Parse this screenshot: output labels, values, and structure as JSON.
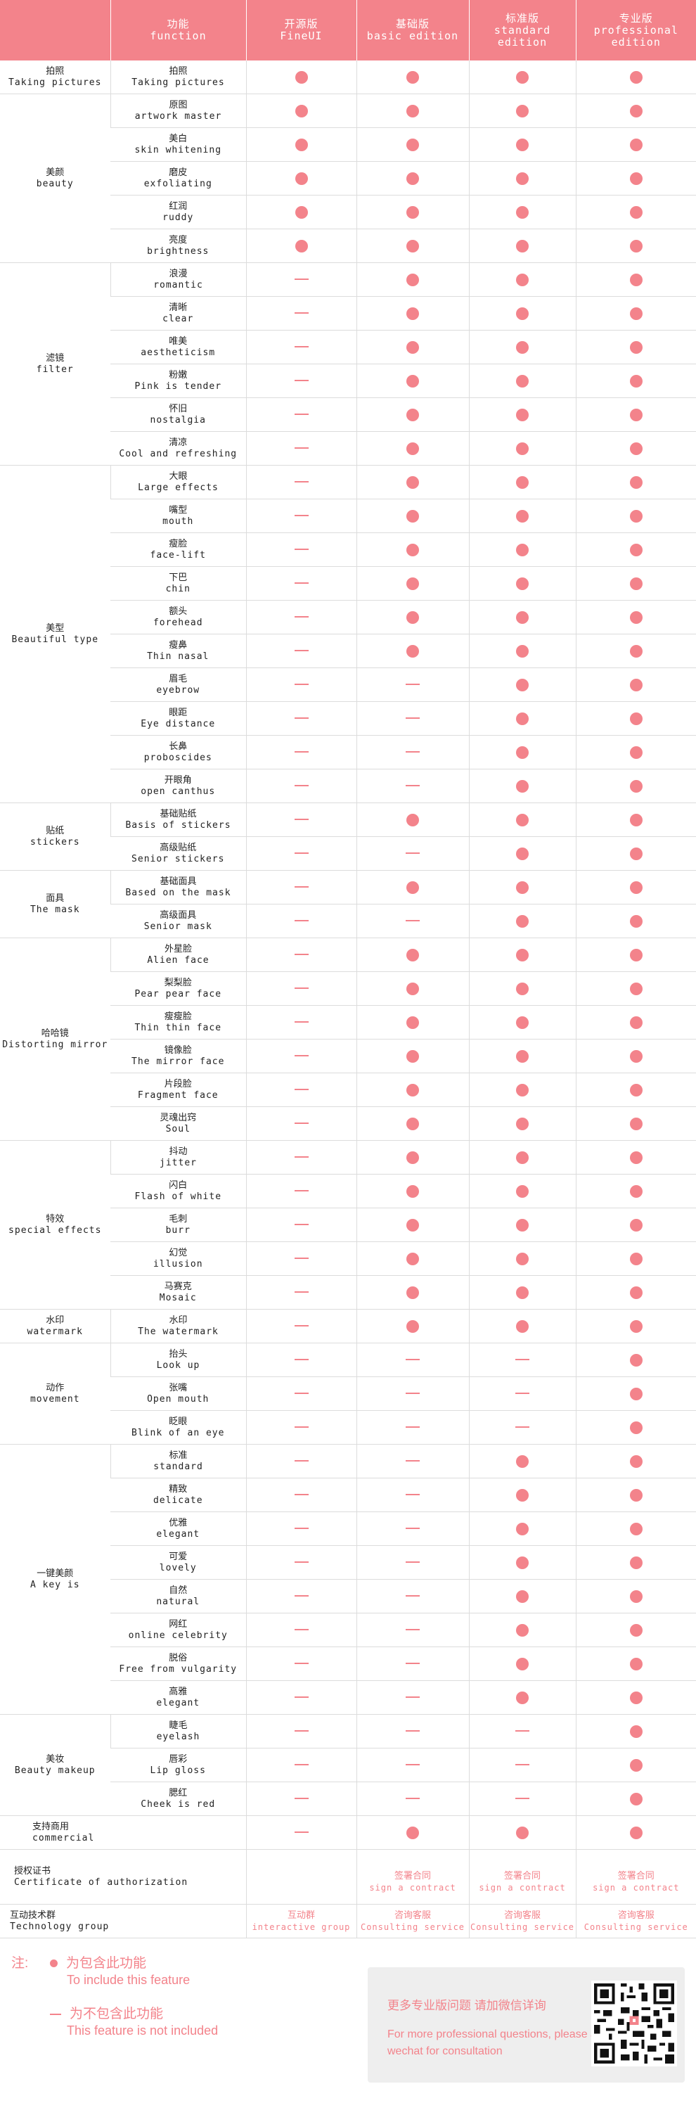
{
  "header": {
    "function": {
      "zh": "功能",
      "en": "function"
    },
    "editions": [
      {
        "zh": "开源版",
        "en": "FineUI"
      },
      {
        "zh": "基础版",
        "en": "basic edition"
      },
      {
        "zh": "标准版",
        "en": "standard edition"
      },
      {
        "zh": "专业版",
        "en": "professional edition"
      }
    ]
  },
  "groups": [
    {
      "zh": "拍照",
      "en": "Taking pictures",
      "rows": [
        {
          "zh": "拍照",
          "en": "Taking pictures",
          "v": [
            1,
            1,
            1,
            1
          ]
        }
      ]
    },
    {
      "zh": "美颜",
      "en": "beauty",
      "rows": [
        {
          "zh": "原图",
          "en": "artwork master",
          "v": [
            1,
            1,
            1,
            1
          ]
        },
        {
          "zh": "美白",
          "en": "skin whitening",
          "v": [
            1,
            1,
            1,
            1
          ]
        },
        {
          "zh": "磨皮",
          "en": "exfoliating",
          "v": [
            1,
            1,
            1,
            1
          ]
        },
        {
          "zh": "红润",
          "en": "ruddy",
          "v": [
            1,
            1,
            1,
            1
          ]
        },
        {
          "zh": "亮度",
          "en": "brightness",
          "v": [
            1,
            1,
            1,
            1
          ]
        }
      ]
    },
    {
      "zh": "滤镜",
      "en": "filter",
      "rows": [
        {
          "zh": "浪漫",
          "en": "romantic",
          "v": [
            0,
            1,
            1,
            1
          ]
        },
        {
          "zh": "清晰",
          "en": "clear",
          "v": [
            0,
            1,
            1,
            1
          ]
        },
        {
          "zh": "唯美",
          "en": "aestheticism",
          "v": [
            0,
            1,
            1,
            1
          ]
        },
        {
          "zh": "粉嫩",
          "en": "Pink is tender",
          "v": [
            0,
            1,
            1,
            1
          ]
        },
        {
          "zh": "怀旧",
          "en": "nostalgia",
          "v": [
            0,
            1,
            1,
            1
          ]
        },
        {
          "zh": "清凉",
          "en": "Cool and refreshing",
          "v": [
            0,
            1,
            1,
            1
          ]
        }
      ]
    },
    {
      "zh": "美型",
      "en": "Beautiful type",
      "rows": [
        {
          "zh": "大眼",
          "en": "Large effects",
          "v": [
            0,
            1,
            1,
            1
          ]
        },
        {
          "zh": "嘴型",
          "en": "mouth",
          "v": [
            0,
            1,
            1,
            1
          ]
        },
        {
          "zh": "瘦脸",
          "en": "face-lift",
          "v": [
            0,
            1,
            1,
            1
          ]
        },
        {
          "zh": "下巴",
          "en": "chin",
          "v": [
            0,
            1,
            1,
            1
          ]
        },
        {
          "zh": "额头",
          "en": "forehead",
          "v": [
            0,
            1,
            1,
            1
          ]
        },
        {
          "zh": "瘦鼻",
          "en": "Thin nasal",
          "v": [
            0,
            1,
            1,
            1
          ]
        },
        {
          "zh": "眉毛",
          "en": "eyebrow",
          "v": [
            0,
            0,
            1,
            1
          ]
        },
        {
          "zh": "眼距",
          "en": "Eye distance",
          "v": [
            0,
            0,
            1,
            1
          ]
        },
        {
          "zh": "长鼻",
          "en": "proboscides",
          "v": [
            0,
            0,
            1,
            1
          ]
        },
        {
          "zh": "开眼角",
          "en": "open canthus",
          "v": [
            0,
            0,
            1,
            1
          ]
        }
      ]
    },
    {
      "zh": "贴纸",
      "en": "stickers",
      "rows": [
        {
          "zh": "基础贴纸",
          "en": "Basis of stickers",
          "v": [
            0,
            1,
            1,
            1
          ]
        },
        {
          "zh": "高级贴纸",
          "en": "Senior stickers",
          "v": [
            0,
            0,
            1,
            1
          ]
        }
      ]
    },
    {
      "zh": "面具",
      "en": "The mask",
      "rows": [
        {
          "zh": "基础面具",
          "en": "Based on the mask",
          "v": [
            0,
            1,
            1,
            1
          ]
        },
        {
          "zh": "高级面具",
          "en": "Senior mask",
          "v": [
            0,
            0,
            1,
            1
          ]
        }
      ]
    },
    {
      "zh": "哈哈镜",
      "en": "Distorting mirror",
      "rows": [
        {
          "zh": "外星脸",
          "en": "Alien face",
          "v": [
            0,
            1,
            1,
            1
          ]
        },
        {
          "zh": "梨梨脸",
          "en": "Pear pear face",
          "v": [
            0,
            1,
            1,
            1
          ]
        },
        {
          "zh": "瘦瘦脸",
          "en": "Thin thin face",
          "v": [
            0,
            1,
            1,
            1
          ]
        },
        {
          "zh": "镜像脸",
          "en": "The mirror face",
          "v": [
            0,
            1,
            1,
            1
          ]
        },
        {
          "zh": "片段脸",
          "en": "Fragment face",
          "v": [
            0,
            1,
            1,
            1
          ]
        },
        {
          "zh": "灵魂出窍",
          "en": "Soul",
          "v": [
            0,
            1,
            1,
            1
          ]
        }
      ]
    },
    {
      "zh": "特效",
      "en": "special effects",
      "rows": [
        {
          "zh": "抖动",
          "en": "jitter",
          "v": [
            0,
            1,
            1,
            1
          ]
        },
        {
          "zh": "闪白",
          "en": "Flash of white",
          "v": [
            0,
            1,
            1,
            1
          ]
        },
        {
          "zh": "毛刺",
          "en": "burr",
          "v": [
            0,
            1,
            1,
            1
          ]
        },
        {
          "zh": "幻觉",
          "en": "illusion",
          "v": [
            0,
            1,
            1,
            1
          ]
        },
        {
          "zh": "马赛克",
          "en": "Mosaic",
          "v": [
            0,
            1,
            1,
            1
          ]
        }
      ]
    },
    {
      "zh": "水印",
      "en": "watermark",
      "rows": [
        {
          "zh": "水印",
          "en": "The watermark",
          "v": [
            0,
            1,
            1,
            1
          ]
        }
      ]
    },
    {
      "zh": "动作",
      "en": "movement",
      "rows": [
        {
          "zh": "抬头",
          "en": "Look up",
          "v": [
            0,
            0,
            0,
            1
          ]
        },
        {
          "zh": "张嘴",
          "en": "Open mouth",
          "v": [
            0,
            0,
            0,
            1
          ]
        },
        {
          "zh": "眨眼",
          "en": "Blink of an eye",
          "v": [
            0,
            0,
            0,
            1
          ]
        }
      ]
    },
    {
      "zh": "一键美颜",
      "en": "A key is",
      "rows": [
        {
          "zh": "标准",
          "en": "standard",
          "v": [
            0,
            0,
            1,
            1
          ]
        },
        {
          "zh": "精致",
          "en": "delicate",
          "v": [
            0,
            0,
            1,
            1
          ]
        },
        {
          "zh": "优雅",
          "en": "elegant",
          "v": [
            0,
            0,
            1,
            1
          ]
        },
        {
          "zh": "可爱",
          "en": "lovely",
          "v": [
            0,
            0,
            1,
            1
          ]
        },
        {
          "zh": "自然",
          "en": "natural",
          "v": [
            0,
            0,
            1,
            1
          ]
        },
        {
          "zh": "网红",
          "en": "online celebrity",
          "v": [
            0,
            0,
            1,
            1
          ]
        },
        {
          "zh": "脱俗",
          "en": "Free from vulgarity",
          "v": [
            0,
            0,
            1,
            1
          ]
        },
        {
          "zh": "高雅",
          "en": "elegant",
          "v": [
            0,
            0,
            1,
            1
          ]
        }
      ]
    },
    {
      "zh": "美妆",
      "en": "Beauty makeup",
      "rows": [
        {
          "zh": "睫毛",
          "en": "eyelash",
          "v": [
            0,
            0,
            0,
            1
          ]
        },
        {
          "zh": "唇彩",
          "en": "Lip gloss",
          "v": [
            0,
            0,
            0,
            1
          ]
        },
        {
          "zh": "腮红",
          "en": "Cheek is red",
          "v": [
            0,
            0,
            0,
            1
          ]
        }
      ]
    }
  ],
  "commercial": {
    "zh": "支持商用",
    "en": "commercial",
    "v": [
      0,
      1,
      1,
      1
    ]
  },
  "authorization": {
    "zh": "授权证书",
    "en": "Certificate of authorization",
    "cells": [
      null,
      {
        "zh": "签署合同",
        "en": "sign a contract"
      },
      {
        "zh": "签署合同",
        "en": "sign a contract"
      },
      {
        "zh": "签署合同",
        "en": "sign a contract"
      }
    ]
  },
  "tech_group": {
    "zh": "互动技术群",
    "en": "Technology group",
    "cells": [
      {
        "zh": "互动群",
        "en": "interactive group"
      },
      {
        "zh": "咨询客服",
        "en": "Consulting service"
      },
      {
        "zh": "咨询客服",
        "en": "Consulting service"
      },
      {
        "zh": "咨询客服",
        "en": "Consulting service"
      }
    ]
  },
  "legend": {
    "note": "注:",
    "included": {
      "zh": "为包含此功能",
      "en": "To include this feature"
    },
    "excluded": {
      "zh": "为不包含此功能",
      "en": "This feature is not included"
    }
  },
  "contact": {
    "zh": "更多专业版问题 请加微信详询",
    "en": "For more professional questions, please add wechat for consultation"
  },
  "colors": {
    "accent": "#f3838b",
    "border": "#dcdcdc",
    "contact_bg": "#eeeeee"
  }
}
